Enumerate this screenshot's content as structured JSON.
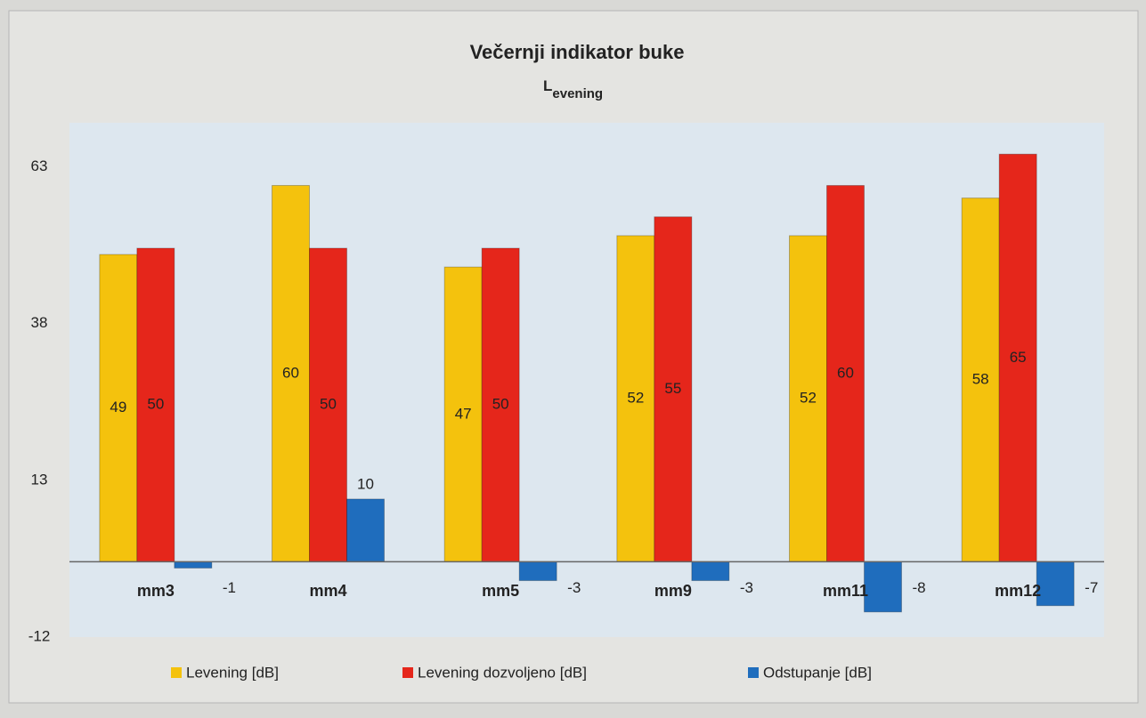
{
  "chart_data": {
    "type": "bar",
    "title": "Večernji indikator buke",
    "subtitle": "L",
    "subtitle_subscript": "evening",
    "categories": [
      "mm3",
      "mm4",
      "mm5",
      "mm9",
      "mm11",
      "mm12"
    ],
    "series": [
      {
        "name": "Levening [dB]",
        "color": "#f4c20d",
        "values": [
          49,
          60,
          47,
          52,
          52,
          58
        ]
      },
      {
        "name": "Levening dozvoljeno [dB]",
        "color": "#e5261b",
        "values": [
          50,
          50,
          50,
          55,
          60,
          65
        ]
      },
      {
        "name": "Odstupanje [dB]",
        "color": "#1f6dbd",
        "values": [
          -1,
          10,
          -3,
          -3,
          -8,
          -7
        ]
      }
    ],
    "ylim": [
      -12,
      70
    ],
    "yticks": [
      -12,
      13,
      38,
      63
    ],
    "grid": false,
    "legend": "bottom"
  }
}
